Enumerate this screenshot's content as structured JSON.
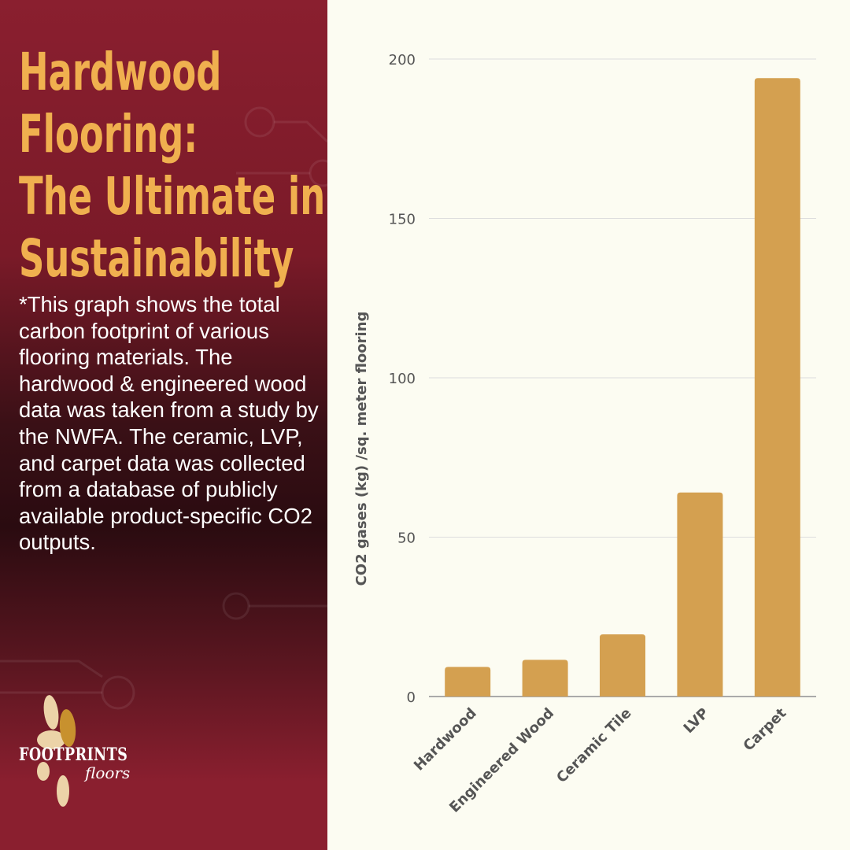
{
  "title_lines": [
    "Hardwood",
    "Flooring:",
    "The Ultimate in",
    "Sustainability"
  ],
  "note": "*This graph shows the total carbon footprint of various flooring materials. The hardwood & engineered wood data was taken from a study by the NWFA. The ceramic, LVP, and carpet data was collected from a database of publicly available product-specific CO2 outputs.",
  "logo": {
    "name": "FOOTPRINTS",
    "sub": "floors"
  },
  "colors": {
    "panel": "#8a1f2f",
    "title": "#f0b04f",
    "bar": "#d4a050",
    "background": "#fcfcf2"
  },
  "chart_data": {
    "type": "bar",
    "categories": [
      "Hardwood",
      "Engineered Wood",
      "Ceramic Tile",
      "LVP",
      "Carpet"
    ],
    "values": [
      9.3,
      11.5,
      19.5,
      64,
      194
    ],
    "ylabel": "CO2 gases (kg) /sq. meter flooring",
    "xlabel": "",
    "ylim": [
      0,
      200
    ],
    "yticks": [
      0,
      50,
      100,
      150,
      200
    ],
    "grid": true
  }
}
